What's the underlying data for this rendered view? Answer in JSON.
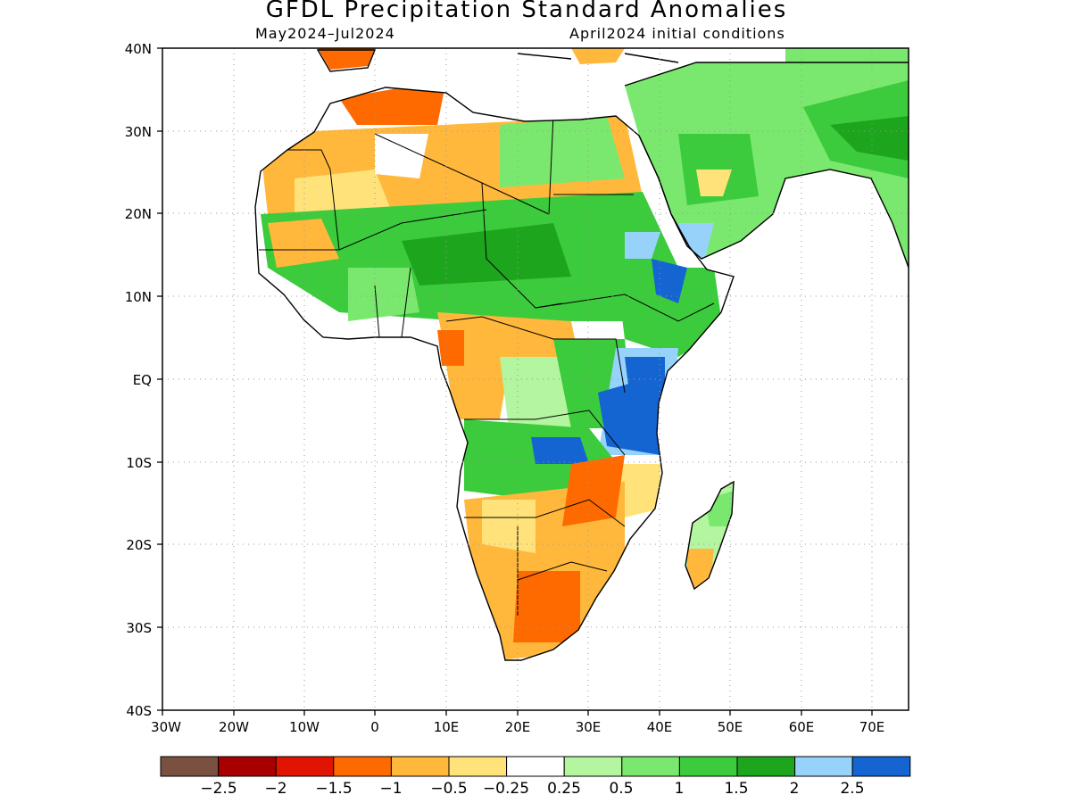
{
  "title": "GFDL Precipitation Standard Anomalies",
  "period": "May2024–Jul2024",
  "init": "April2024 initial conditions",
  "lat_labels": [
    "40N",
    "30N",
    "20N",
    "10N",
    "EQ",
    "10S",
    "20S",
    "30S",
    "40S"
  ],
  "lon_labels": [
    "30W",
    "20W",
    "10W",
    "0",
    "10E",
    "20E",
    "30E",
    "40E",
    "50E",
    "60E",
    "70E"
  ],
  "colorbar": {
    "colors": [
      "#7a5040",
      "#a80000",
      "#e01400",
      "#ff6a00",
      "#ffb83c",
      "#ffe27a",
      "#ffffff",
      "#b4f5a0",
      "#7ae86e",
      "#3ccb3c",
      "#1ea51e",
      "#96d2fa",
      "#1464d2"
    ],
    "labels": [
      "−2.5",
      "−2",
      "−1.5",
      "−1",
      "−0.5",
      "−0.25",
      "0.25",
      "0.5",
      "1",
      "1.5",
      "2",
      "2.5"
    ]
  },
  "chart_data": {
    "type": "map",
    "region": "Africa",
    "variable": "Precipitation Standard Anomalies",
    "lon_range": [
      -30,
      75
    ],
    "lat_range": [
      -40,
      40
    ],
    "anomaly_regions": [
      {
        "area": "Sahel and Sudan",
        "anomaly": 1
      },
      {
        "area": "Ethiopia and Somalia",
        "anomaly": 1
      },
      {
        "area": "East Africa coast (Kenya/Tanzania)",
        "anomaly": 2.5
      },
      {
        "area": "Arabian Peninsula",
        "anomaly": 0.5
      },
      {
        "area": "Iran and Pakistan",
        "anomaly": 1
      },
      {
        "area": "Southern Africa",
        "anomaly": -1
      },
      {
        "area": "South Africa / Botswana",
        "anomaly": -1.5
      },
      {
        "area": "Northwest Africa (Morocco)",
        "anomaly": -1.5
      },
      {
        "area": "Central Sahara",
        "anomaly": -0.5
      },
      {
        "area": "Gulf of Guinea / Cameroon",
        "anomaly": -0.5
      },
      {
        "area": "Angola / Zambia",
        "anomaly": 1
      },
      {
        "area": "Madagascar",
        "anomaly": 0.5
      }
    ]
  }
}
